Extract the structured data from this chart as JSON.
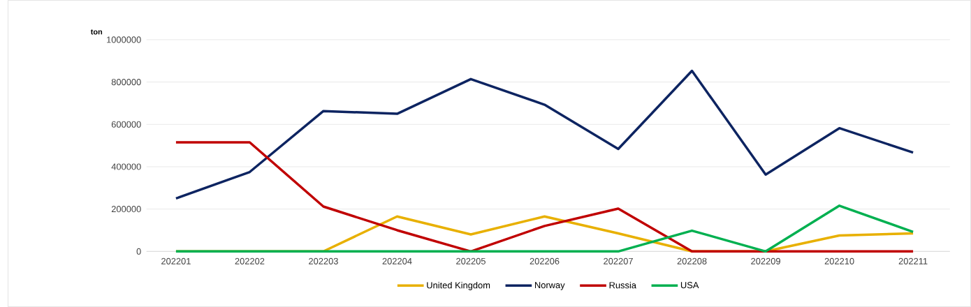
{
  "chart_data": {
    "type": "line",
    "ylabel": "ton",
    "categories": [
      "202201",
      "202202",
      "202203",
      "202204",
      "202205",
      "202206",
      "202207",
      "202208",
      "202209",
      "202210",
      "202211"
    ],
    "series": [
      {
        "name": "United Kingdom",
        "color": "#e8b000",
        "values": [
          0,
          0,
          0,
          165000,
          80000,
          165000,
          85000,
          0,
          0,
          75000,
          85000
        ]
      },
      {
        "name": "Norway",
        "color": "#0d2461",
        "values": [
          250000,
          375000,
          663000,
          650000,
          814000,
          693000,
          484000,
          853000,
          363000,
          582000,
          467000
        ]
      },
      {
        "name": "Russia",
        "color": "#c00000",
        "values": [
          515000,
          515000,
          212000,
          100000,
          0,
          120000,
          202000,
          0,
          0,
          0,
          0
        ]
      },
      {
        "name": "USA",
        "color": "#00b050",
        "values": [
          0,
          0,
          0,
          0,
          0,
          0,
          0,
          98000,
          0,
          216000,
          92000
        ]
      }
    ],
    "ylim": [
      0,
      1000000
    ],
    "yticks": [
      0,
      200000,
      400000,
      600000,
      800000,
      1000000
    ],
    "grid": "y",
    "legend": "bottom",
    "marker": "none",
    "line_style": "solid"
  }
}
